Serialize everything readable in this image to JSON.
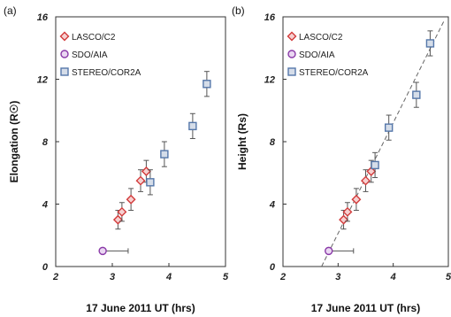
{
  "chart_data": [
    {
      "type": "scatter",
      "panel_label": "(a)",
      "xlabel": "17 June 2011 UT (hrs)",
      "ylabel": "Elongation (R☉)",
      "xlim": [
        2,
        5
      ],
      "ylim": [
        0,
        16
      ],
      "xticks": [
        "2",
        "3",
        "4",
        "5"
      ],
      "yticks": [
        "0",
        "4",
        "8",
        "12",
        "16"
      ],
      "grid": false,
      "legend_position": "top-left",
      "series": [
        {
          "name": "LASCO/C2",
          "marker": "diamond",
          "color": "#d23a3a",
          "points": [
            {
              "x": 3.1,
              "y": 3.0,
              "yerr": 0.6
            },
            {
              "x": 3.17,
              "y": 3.5,
              "yerr": 0.6
            },
            {
              "x": 3.33,
              "y": 4.3,
              "yerr": 0.7
            },
            {
              "x": 3.5,
              "y": 5.5,
              "yerr": 0.7
            },
            {
              "x": 3.6,
              "y": 6.1,
              "yerr": 0.7
            }
          ]
        },
        {
          "name": "SDO/AIA",
          "marker": "circle",
          "color": "#8a3aa8",
          "points": [
            {
              "x": 2.83,
              "y": 1.0,
              "xerr_lo": 0.0,
              "xerr_hi": 0.45
            }
          ]
        },
        {
          "name": "STEREO/COR2A",
          "marker": "square",
          "color": "#5577aa",
          "points": [
            {
              "x": 3.67,
              "y": 5.4,
              "yerr": 0.8
            },
            {
              "x": 3.92,
              "y": 7.2,
              "yerr": 0.8
            },
            {
              "x": 4.42,
              "y": 9.0,
              "yerr": 0.8
            },
            {
              "x": 4.67,
              "y": 11.7,
              "yerr": 0.8
            }
          ]
        }
      ]
    },
    {
      "type": "scatter",
      "panel_label": "(b)",
      "xlabel": "17 June 2011 UT (hrs)",
      "ylabel": "Height (Rs)",
      "xlim": [
        2,
        5
      ],
      "ylim": [
        0,
        16
      ],
      "xticks": [
        "2",
        "3",
        "4",
        "5"
      ],
      "yticks": [
        "0",
        "4",
        "8",
        "12",
        "16"
      ],
      "grid": false,
      "legend_position": "top-left",
      "fit_line": {
        "style": "dashed",
        "x": [
          2.7,
          4.93
        ],
        "y": [
          0,
          15.8
        ]
      },
      "series": [
        {
          "name": "LASCO/C2",
          "marker": "diamond",
          "color": "#d23a3a",
          "points": [
            {
              "x": 3.1,
              "y": 3.0,
              "yerr": 0.6
            },
            {
              "x": 3.17,
              "y": 3.5,
              "yerr": 0.6
            },
            {
              "x": 3.33,
              "y": 4.3,
              "yerr": 0.7
            },
            {
              "x": 3.5,
              "y": 5.5,
              "yerr": 0.7
            },
            {
              "x": 3.6,
              "y": 6.1,
              "yerr": 0.7
            }
          ]
        },
        {
          "name": "SDO/AIA",
          "marker": "circle",
          "color": "#8a3aa8",
          "points": [
            {
              "x": 2.83,
              "y": 1.0,
              "xerr_lo": 0.0,
              "xerr_hi": 0.45
            }
          ]
        },
        {
          "name": "STEREO/COR2A",
          "marker": "square",
          "color": "#5577aa",
          "points": [
            {
              "x": 3.67,
              "y": 6.5,
              "yerr": 0.8
            },
            {
              "x": 3.92,
              "y": 8.9,
              "yerr": 0.8
            },
            {
              "x": 4.42,
              "y": 11.0,
              "yerr": 0.8
            },
            {
              "x": 4.67,
              "y": 14.3,
              "yerr": 0.8
            }
          ]
        }
      ]
    }
  ]
}
